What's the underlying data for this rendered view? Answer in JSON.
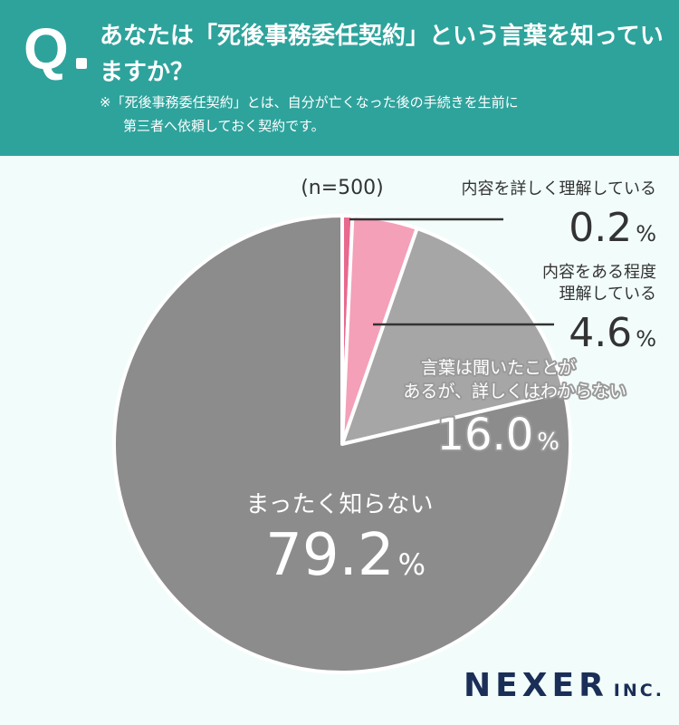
{
  "header": {
    "q_letter": "Q",
    "question": "あなたは「死後事務委任契約」という言葉を知っていますか？",
    "note_line1": "※「死後事務委任契約」とは、自分が亡くなった後の手続きを生前に",
    "note_line2": "第三者へ依頼しておく契約です。",
    "bg_color": "#2ea39c"
  },
  "chart_data": {
    "type": "pie",
    "sample_size_label": "(n=500)",
    "unit": "%",
    "slices": [
      {
        "label": "内容を詳しく理解している",
        "value": 0.2,
        "value_text": "0.2",
        "color": "#e8698e"
      },
      {
        "label": "内容をある程度理解している",
        "value": 4.6,
        "value_text": "4.6",
        "color": "#f4a0b8"
      },
      {
        "label": "言葉は聞いたことがあるが、詳しくはわからない",
        "value": 16.0,
        "value_text": "16.0",
        "color": "#a6a6a6"
      },
      {
        "label": "まったく知らない",
        "value": 79.2,
        "value_text": "79.2",
        "color": "#8c8c8c"
      }
    ],
    "label_lines": {
      "s0": [
        "内容を詳しく理解している"
      ],
      "s1": [
        "内容をある程度",
        "理解している"
      ],
      "s2": [
        "言葉は聞いたことが",
        "あるが、詳しくはわからない"
      ],
      "s3": [
        "まったく知らない"
      ]
    }
  },
  "logo": {
    "main": "NEXER",
    "sub": "INC."
  }
}
